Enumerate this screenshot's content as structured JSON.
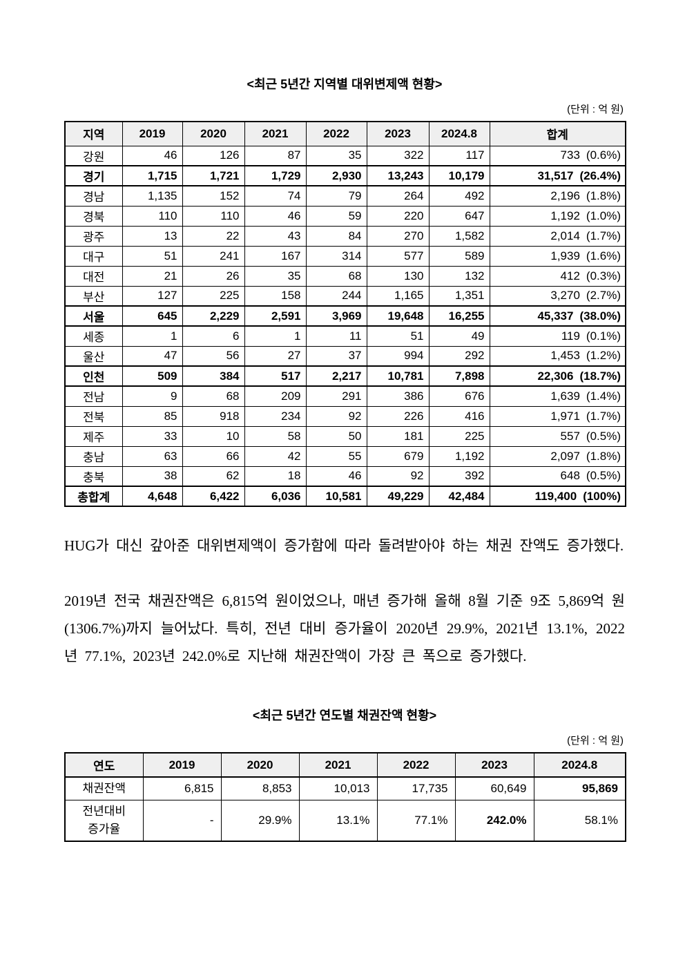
{
  "colors": {
    "table_header_bg": "#efefef",
    "border": "#000000",
    "text": "#000000"
  },
  "table1": {
    "title": "<최근 5년간 지역별 대위변제액 현황>",
    "unit": "(단위 : 억 원)",
    "columns": [
      "지역",
      "2019",
      "2020",
      "2021",
      "2022",
      "2023",
      "2024.8",
      "합계"
    ],
    "rows": [
      {
        "region": "강원",
        "values": [
          "46",
          "126",
          "87",
          "35",
          "322",
          "117"
        ],
        "total": "733",
        "share": "(0.6%)",
        "emphasis": false
      },
      {
        "region": "경기",
        "values": [
          "1,715",
          "1,721",
          "1,729",
          "2,930",
          "13,243",
          "10,179"
        ],
        "total": "31,517",
        "share": "(26.4%)",
        "emphasis": true
      },
      {
        "region": "경남",
        "values": [
          "1,135",
          "152",
          "74",
          "79",
          "264",
          "492"
        ],
        "total": "2,196",
        "share": "(1.8%)",
        "emphasis": false
      },
      {
        "region": "경북",
        "values": [
          "110",
          "110",
          "46",
          "59",
          "220",
          "647"
        ],
        "total": "1,192",
        "share": "(1.0%)",
        "emphasis": false
      },
      {
        "region": "광주",
        "values": [
          "13",
          "22",
          "43",
          "84",
          "270",
          "1,582"
        ],
        "total": "2,014",
        "share": "(1.7%)",
        "emphasis": false
      },
      {
        "region": "대구",
        "values": [
          "51",
          "241",
          "167",
          "314",
          "577",
          "589"
        ],
        "total": "1,939",
        "share": "(1.6%)",
        "emphasis": false
      },
      {
        "region": "대전",
        "values": [
          "21",
          "26",
          "35",
          "68",
          "130",
          "132"
        ],
        "total": "412",
        "share": "(0.3%)",
        "emphasis": false
      },
      {
        "region": "부산",
        "values": [
          "127",
          "225",
          "158",
          "244",
          "1,165",
          "1,351"
        ],
        "total": "3,270",
        "share": "(2.7%)",
        "emphasis": false
      },
      {
        "region": "서울",
        "values": [
          "645",
          "2,229",
          "2,591",
          "3,969",
          "19,648",
          "16,255"
        ],
        "total": "45,337",
        "share": "(38.0%)",
        "emphasis": true
      },
      {
        "region": "세종",
        "values": [
          "1",
          "6",
          "1",
          "11",
          "51",
          "49"
        ],
        "total": "119",
        "share": "(0.1%)",
        "emphasis": false
      },
      {
        "region": "울산",
        "values": [
          "47",
          "56",
          "27",
          "37",
          "994",
          "292"
        ],
        "total": "1,453",
        "share": "(1.2%)",
        "emphasis": false
      },
      {
        "region": "인천",
        "values": [
          "509",
          "384",
          "517",
          "2,217",
          "10,781",
          "7,898"
        ],
        "total": "22,306",
        "share": "(18.7%)",
        "emphasis": true
      },
      {
        "region": "전남",
        "values": [
          "9",
          "68",
          "209",
          "291",
          "386",
          "676"
        ],
        "total": "1,639",
        "share": "(1.4%)",
        "emphasis": false
      },
      {
        "region": "전북",
        "values": [
          "85",
          "918",
          "234",
          "92",
          "226",
          "416"
        ],
        "total": "1,971",
        "share": "(1.7%)",
        "emphasis": false
      },
      {
        "region": "제주",
        "values": [
          "33",
          "10",
          "58",
          "50",
          "181",
          "225"
        ],
        "total": "557",
        "share": "(0.5%)",
        "emphasis": false
      },
      {
        "region": "충남",
        "values": [
          "63",
          "66",
          "42",
          "55",
          "679",
          "1,192"
        ],
        "total": "2,097",
        "share": "(1.8%)",
        "emphasis": false
      },
      {
        "region": "충북",
        "values": [
          "38",
          "62",
          "18",
          "46",
          "92",
          "392"
        ],
        "total": "648",
        "share": "(0.5%)",
        "emphasis": false
      },
      {
        "region": "총합계",
        "values": [
          "4,648",
          "6,422",
          "6,036",
          "10,581",
          "49,229",
          "42,484"
        ],
        "total": "119,400",
        "share": "(100%)",
        "emphasis": true
      }
    ]
  },
  "paragraphs": [
    "HUG가 대신 갚아준 대위변제액이 증가함에 따라 돌려받아야 하는 채권 잔액도 증가했다.",
    "2019년 전국 채권잔액은 6,815억 원이었으나, 매년 증가해 올해 8월 기준 9조 5,869억 원(1306.7%)까지 늘어났다. 특히, 전년 대비 증가율이 2020년 29.9%, 2021년 13.1%, 2022년 77.1%, 2023년 242.0%로 지난해 채권잔액이 가장 큰 폭으로 증가했다."
  ],
  "table2": {
    "title": "<최근 5년간 연도별 채권잔액 현황>",
    "unit": "(단위 : 억 원)",
    "columns": [
      "연도",
      "2019",
      "2020",
      "2021",
      "2022",
      "2023",
      "2024.8"
    ],
    "rows": [
      {
        "label": "채권잔액",
        "values": [
          "6,815",
          "8,853",
          "10,013",
          "17,735",
          "60,649",
          "95,869"
        ],
        "bold_cols": [
          5
        ]
      },
      {
        "label": "전년대비\n증가율",
        "values": [
          "-",
          "29.9%",
          "13.1%",
          "77.1%",
          "242.0%",
          "58.1%"
        ],
        "bold_cols": [
          4
        ]
      }
    ]
  }
}
